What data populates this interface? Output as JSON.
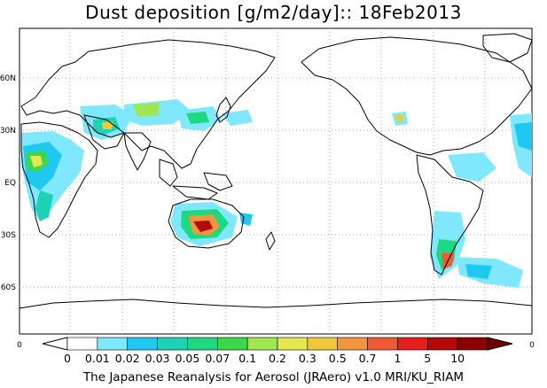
{
  "title": "Dust deposition [g/m2/day]:: 18Feb2013",
  "footer": "The Japanese Reanalysis for Aerosol (JRAero) v1.0 MRI/KU_RIAM",
  "lat_labels": [
    "60N",
    "30N",
    "EQ",
    "30S",
    "60S"
  ],
  "colorbar": {
    "left_end": "0",
    "right_end": "0",
    "labels": [
      "0",
      "0.01",
      "0.02",
      "0.03",
      "0.05",
      "0.07",
      "0.1",
      "0.2",
      "0.3",
      "0.5",
      "0.7",
      "1",
      "5",
      "10"
    ],
    "colors": [
      "#ffffff",
      "#ffffff",
      "#7fe8ff",
      "#1ec8f0",
      "#1ed2b4",
      "#1ed982",
      "#3cd74a",
      "#a0e650",
      "#e6e650",
      "#f0c83c",
      "#f0963c",
      "#f05a32",
      "#e61e1e",
      "#b40a0a",
      "#8c0000",
      "#6e0000"
    ]
  },
  "colors": {
    "coast": "#000000",
    "grid": "#aaaaaa"
  }
}
